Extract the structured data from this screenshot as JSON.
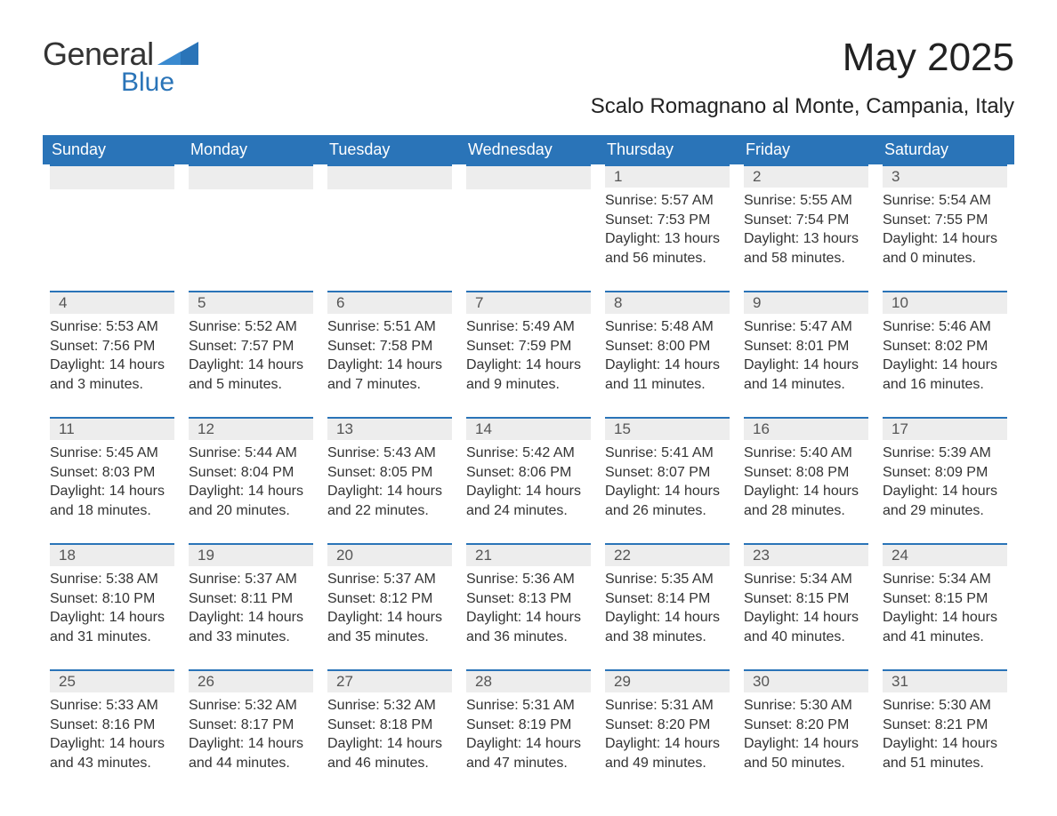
{
  "brand": {
    "word1": "General",
    "word2": "Blue",
    "word1_color": "#333333",
    "word2_color": "#2a74b8"
  },
  "title": "May 2025",
  "location": "Scalo Romagnano al Monte, Campania, Italy",
  "colors": {
    "header_bg": "#2a74b8",
    "header_text": "#ffffff",
    "day_bar_bg": "#ededed",
    "day_bar_border": "#2a74b8",
    "body_text": "#333333",
    "page_bg": "#ffffff"
  },
  "weekdays": [
    "Sunday",
    "Monday",
    "Tuesday",
    "Wednesday",
    "Thursday",
    "Friday",
    "Saturday"
  ],
  "weeks": [
    [
      null,
      null,
      null,
      null,
      {
        "n": "1",
        "sunrise": "5:57 AM",
        "sunset": "7:53 PM",
        "daylight": "13 hours and 56 minutes."
      },
      {
        "n": "2",
        "sunrise": "5:55 AM",
        "sunset": "7:54 PM",
        "daylight": "13 hours and 58 minutes."
      },
      {
        "n": "3",
        "sunrise": "5:54 AM",
        "sunset": "7:55 PM",
        "daylight": "14 hours and 0 minutes."
      }
    ],
    [
      {
        "n": "4",
        "sunrise": "5:53 AM",
        "sunset": "7:56 PM",
        "daylight": "14 hours and 3 minutes."
      },
      {
        "n": "5",
        "sunrise": "5:52 AM",
        "sunset": "7:57 PM",
        "daylight": "14 hours and 5 minutes."
      },
      {
        "n": "6",
        "sunrise": "5:51 AM",
        "sunset": "7:58 PM",
        "daylight": "14 hours and 7 minutes."
      },
      {
        "n": "7",
        "sunrise": "5:49 AM",
        "sunset": "7:59 PM",
        "daylight": "14 hours and 9 minutes."
      },
      {
        "n": "8",
        "sunrise": "5:48 AM",
        "sunset": "8:00 PM",
        "daylight": "14 hours and 11 minutes."
      },
      {
        "n": "9",
        "sunrise": "5:47 AM",
        "sunset": "8:01 PM",
        "daylight": "14 hours and 14 minutes."
      },
      {
        "n": "10",
        "sunrise": "5:46 AM",
        "sunset": "8:02 PM",
        "daylight": "14 hours and 16 minutes."
      }
    ],
    [
      {
        "n": "11",
        "sunrise": "5:45 AM",
        "sunset": "8:03 PM",
        "daylight": "14 hours and 18 minutes."
      },
      {
        "n": "12",
        "sunrise": "5:44 AM",
        "sunset": "8:04 PM",
        "daylight": "14 hours and 20 minutes."
      },
      {
        "n": "13",
        "sunrise": "5:43 AM",
        "sunset": "8:05 PM",
        "daylight": "14 hours and 22 minutes."
      },
      {
        "n": "14",
        "sunrise": "5:42 AM",
        "sunset": "8:06 PM",
        "daylight": "14 hours and 24 minutes."
      },
      {
        "n": "15",
        "sunrise": "5:41 AM",
        "sunset": "8:07 PM",
        "daylight": "14 hours and 26 minutes."
      },
      {
        "n": "16",
        "sunrise": "5:40 AM",
        "sunset": "8:08 PM",
        "daylight": "14 hours and 28 minutes."
      },
      {
        "n": "17",
        "sunrise": "5:39 AM",
        "sunset": "8:09 PM",
        "daylight": "14 hours and 29 minutes."
      }
    ],
    [
      {
        "n": "18",
        "sunrise": "5:38 AM",
        "sunset": "8:10 PM",
        "daylight": "14 hours and 31 minutes."
      },
      {
        "n": "19",
        "sunrise": "5:37 AM",
        "sunset": "8:11 PM",
        "daylight": "14 hours and 33 minutes."
      },
      {
        "n": "20",
        "sunrise": "5:37 AM",
        "sunset": "8:12 PM",
        "daylight": "14 hours and 35 minutes."
      },
      {
        "n": "21",
        "sunrise": "5:36 AM",
        "sunset": "8:13 PM",
        "daylight": "14 hours and 36 minutes."
      },
      {
        "n": "22",
        "sunrise": "5:35 AM",
        "sunset": "8:14 PM",
        "daylight": "14 hours and 38 minutes."
      },
      {
        "n": "23",
        "sunrise": "5:34 AM",
        "sunset": "8:15 PM",
        "daylight": "14 hours and 40 minutes."
      },
      {
        "n": "24",
        "sunrise": "5:34 AM",
        "sunset": "8:15 PM",
        "daylight": "14 hours and 41 minutes."
      }
    ],
    [
      {
        "n": "25",
        "sunrise": "5:33 AM",
        "sunset": "8:16 PM",
        "daylight": "14 hours and 43 minutes."
      },
      {
        "n": "26",
        "sunrise": "5:32 AM",
        "sunset": "8:17 PM",
        "daylight": "14 hours and 44 minutes."
      },
      {
        "n": "27",
        "sunrise": "5:32 AM",
        "sunset": "8:18 PM",
        "daylight": "14 hours and 46 minutes."
      },
      {
        "n": "28",
        "sunrise": "5:31 AM",
        "sunset": "8:19 PM",
        "daylight": "14 hours and 47 minutes."
      },
      {
        "n": "29",
        "sunrise": "5:31 AM",
        "sunset": "8:20 PM",
        "daylight": "14 hours and 49 minutes."
      },
      {
        "n": "30",
        "sunrise": "5:30 AM",
        "sunset": "8:20 PM",
        "daylight": "14 hours and 50 minutes."
      },
      {
        "n": "31",
        "sunrise": "5:30 AM",
        "sunset": "8:21 PM",
        "daylight": "14 hours and 51 minutes."
      }
    ]
  ],
  "labels": {
    "sunrise": "Sunrise:",
    "sunset": "Sunset:",
    "daylight": "Daylight:"
  }
}
